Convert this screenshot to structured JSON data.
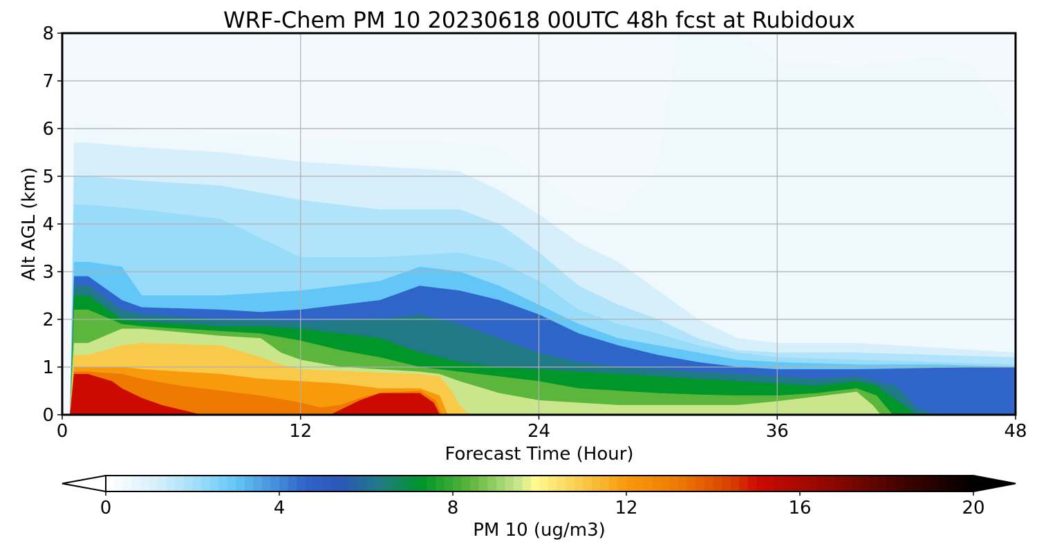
{
  "chart_data": {
    "type": "heatmap",
    "title": "WRF-Chem PM 10  20230618 00UTC 48h fcst at Rubidoux",
    "xlabel": "Forecast Time (Hour)",
    "ylabel": "Alt AGL (km)",
    "xlim": [
      0,
      48
    ],
    "ylim": [
      0,
      8
    ],
    "xticks": [
      0,
      12,
      24,
      36,
      48
    ],
    "yticks": [
      0,
      1,
      2,
      3,
      4,
      5,
      6,
      7,
      8
    ],
    "grid": true,
    "colorbar": {
      "label": "PM 10  (ug/m3)",
      "range": [
        0,
        20
      ],
      "ticks": [
        0,
        4,
        8,
        12,
        16,
        20
      ],
      "extend": "both",
      "orientation": "horizontal",
      "colors": [
        {
          "value": 0,
          "color": "#ffffff"
        },
        {
          "value": 1.2,
          "color": "#d6effb"
        },
        {
          "value": 2.2,
          "color": "#98dcfa"
        },
        {
          "value": 3,
          "color": "#63c6f7"
        },
        {
          "value": 4.6,
          "color": "#2f64c8"
        },
        {
          "value": 5.4,
          "color": "#2b56b8"
        },
        {
          "value": 6.3,
          "color": "#1f7a86"
        },
        {
          "value": 7.3,
          "color": "#00962a"
        },
        {
          "value": 8.4,
          "color": "#5cb63c"
        },
        {
          "value": 9.5,
          "color": "#c9e68c"
        },
        {
          "value": 9.9,
          "color": "#fffa90"
        },
        {
          "value": 11,
          "color": "#f9c94a"
        },
        {
          "value": 12,
          "color": "#f79a0c"
        },
        {
          "value": 13.2,
          "color": "#ef7a02"
        },
        {
          "value": 14.5,
          "color": "#d73a00"
        },
        {
          "value": 15,
          "color": "#cd0a00"
        },
        {
          "value": 16.8,
          "color": "#8a0800"
        },
        {
          "value": 18.5,
          "color": "#3a0300"
        },
        {
          "value": 20,
          "color": "#000000"
        }
      ]
    },
    "hours": [
      0,
      0.6,
      1,
      1.5,
      3,
      4,
      6,
      8,
      10,
      11,
      12,
      14,
      16,
      18,
      19,
      20,
      22,
      24,
      26,
      28,
      30,
      32,
      34,
      36,
      38,
      39,
      40,
      41,
      42,
      44,
      46,
      48
    ],
    "altitudes_km": [
      0,
      0.15,
      0.3,
      0.5,
      0.75,
      1,
      1.25,
      1.5,
      1.75,
      2,
      2.25,
      2.5,
      3,
      3.5,
      4,
      4.5,
      5,
      6,
      7,
      8
    ],
    "contour_levels": [
      {
        "threshold": 0.5,
        "boundary": [
          [
            1.3,
            6.1
          ],
          [
            4,
            6
          ],
          [
            8,
            5.9
          ],
          [
            12,
            5.8
          ],
          [
            16,
            5.75
          ],
          [
            20,
            5.7
          ],
          [
            22,
            5.6
          ],
          [
            24,
            5.0
          ],
          [
            26,
            4.4
          ],
          [
            28,
            4.2
          ],
          [
            30,
            5.2
          ],
          [
            31,
            8.0
          ],
          [
            34,
            8.0
          ],
          [
            36,
            7.4
          ],
          [
            40,
            7.3
          ],
          [
            44,
            7.5
          ],
          [
            46,
            7.3
          ],
          [
            47,
            6.5
          ],
          [
            48,
            6.0
          ]
        ]
      },
      {
        "threshold": 1.2,
        "boundary": [
          [
            1.3,
            5.7
          ],
          [
            4,
            5.6
          ],
          [
            8,
            5.5
          ],
          [
            12,
            5.3
          ],
          [
            16,
            5.2
          ],
          [
            20,
            5.1
          ],
          [
            22,
            4.7
          ],
          [
            24,
            4.2
          ],
          [
            26,
            3.6
          ],
          [
            28,
            3.2
          ],
          [
            30,
            2.6
          ],
          [
            32,
            2.0
          ],
          [
            34,
            1.6
          ],
          [
            36,
            1.5
          ],
          [
            40,
            1.5
          ],
          [
            44,
            1.4
          ],
          [
            48,
            1.3
          ]
        ]
      },
      {
        "threshold": 1.8,
        "boundary": [
          [
            1.3,
            5.0
          ],
          [
            4,
            4.9
          ],
          [
            8,
            4.8
          ],
          [
            12,
            4.5
          ],
          [
            16,
            4.3
          ],
          [
            20,
            4.3
          ],
          [
            22,
            4.0
          ],
          [
            24,
            3.4
          ],
          [
            26,
            2.7
          ],
          [
            28,
            2.3
          ],
          [
            30,
            2.0
          ],
          [
            32,
            1.6
          ],
          [
            34,
            1.35
          ],
          [
            36,
            1.3
          ],
          [
            40,
            1.3
          ],
          [
            44,
            1.25
          ],
          [
            48,
            1.2
          ]
        ]
      },
      {
        "threshold": 2.2,
        "boundary": [
          [
            1.3,
            4.4
          ],
          [
            4,
            4.3
          ],
          [
            8,
            4.1
          ],
          [
            10,
            3.7
          ],
          [
            12,
            3.3
          ],
          [
            16,
            3.3
          ],
          [
            20,
            3.4
          ],
          [
            22,
            3.2
          ],
          [
            24,
            2.8
          ],
          [
            26,
            2.2
          ],
          [
            28,
            1.9
          ],
          [
            30,
            1.7
          ],
          [
            32,
            1.45
          ],
          [
            34,
            1.3
          ],
          [
            36,
            1.2
          ],
          [
            40,
            1.15
          ],
          [
            44,
            1.1
          ],
          [
            48,
            1.05
          ]
        ]
      },
      {
        "threshold": 3.0,
        "boundary": [
          [
            1.3,
            3.2
          ],
          [
            3,
            3.1
          ],
          [
            4,
            2.5
          ],
          [
            8,
            2.5
          ],
          [
            12,
            2.6
          ],
          [
            16,
            2.8
          ],
          [
            18,
            3.1
          ],
          [
            20,
            3.0
          ],
          [
            22,
            2.7
          ],
          [
            24,
            2.3
          ],
          [
            26,
            1.9
          ],
          [
            28,
            1.6
          ],
          [
            30,
            1.45
          ],
          [
            32,
            1.3
          ],
          [
            34,
            1.15
          ],
          [
            36,
            1.1
          ],
          [
            40,
            1.05
          ],
          [
            44,
            1.05
          ],
          [
            48,
            1.0
          ]
        ]
      },
      {
        "threshold": 4.6,
        "boundary": [
          [
            1.3,
            2.9
          ],
          [
            3,
            2.4
          ],
          [
            4,
            2.25
          ],
          [
            8,
            2.2
          ],
          [
            10,
            2.15
          ],
          [
            12,
            2.2
          ],
          [
            16,
            2.4
          ],
          [
            18,
            2.7
          ],
          [
            20,
            2.6
          ],
          [
            22,
            2.4
          ],
          [
            24,
            2.1
          ],
          [
            26,
            1.7
          ],
          [
            28,
            1.45
          ],
          [
            30,
            1.25
          ],
          [
            32,
            1.1
          ],
          [
            34,
            1.0
          ],
          [
            36,
            0.95
          ],
          [
            40,
            0.95
          ],
          [
            44,
            0.98
          ],
          [
            48,
            1.0
          ]
        ]
      },
      {
        "threshold": 6.3,
        "boundary": [
          [
            1.3,
            2.7
          ],
          [
            3,
            2.2
          ],
          [
            4,
            2.1
          ],
          [
            8,
            2.0
          ],
          [
            12,
            1.95
          ],
          [
            16,
            2.0
          ],
          [
            18,
            2.1
          ],
          [
            20,
            1.9
          ],
          [
            22,
            1.6
          ],
          [
            24,
            1.3
          ],
          [
            26,
            1.1
          ],
          [
            28,
            1.0
          ],
          [
            30,
            0.95
          ],
          [
            32,
            0.9
          ],
          [
            34,
            0.85
          ],
          [
            36,
            0.8
          ],
          [
            38,
            0.75
          ],
          [
            40,
            0.8
          ],
          [
            42,
            0.6
          ],
          [
            43,
            0.15
          ],
          [
            44,
            0.0
          ]
        ]
      },
      {
        "threshold": 7.3,
        "boundary": [
          [
            1.3,
            2.5
          ],
          [
            3,
            2.0
          ],
          [
            4,
            1.95
          ],
          [
            8,
            1.85
          ],
          [
            10,
            1.85
          ],
          [
            12,
            1.8
          ],
          [
            14,
            1.7
          ],
          [
            16,
            1.6
          ],
          [
            18,
            1.3
          ],
          [
            20,
            1.1
          ],
          [
            22,
            1.0
          ],
          [
            24,
            0.95
          ],
          [
            26,
            0.9
          ],
          [
            28,
            0.85
          ],
          [
            30,
            0.8
          ],
          [
            32,
            0.75
          ],
          [
            34,
            0.7
          ],
          [
            36,
            0.65
          ],
          [
            38,
            0.6
          ],
          [
            40,
            0.7
          ],
          [
            41,
            0.6
          ],
          [
            42,
            0.3
          ],
          [
            43,
            0.0
          ]
        ]
      },
      {
        "threshold": 8.4,
        "boundary": [
          [
            1.3,
            2.2
          ],
          [
            3,
            1.9
          ],
          [
            4,
            1.85
          ],
          [
            8,
            1.75
          ],
          [
            10,
            1.7
          ],
          [
            12,
            1.55
          ],
          [
            14,
            1.35
          ],
          [
            16,
            1.2
          ],
          [
            18,
            1.0
          ],
          [
            20,
            0.9
          ],
          [
            22,
            0.8
          ],
          [
            24,
            0.7
          ],
          [
            26,
            0.55
          ],
          [
            28,
            0.5
          ],
          [
            30,
            0.45
          ],
          [
            32,
            0.42
          ],
          [
            34,
            0.4
          ],
          [
            36,
            0.4
          ],
          [
            38,
            0.45
          ],
          [
            40,
            0.55
          ],
          [
            41,
            0.4
          ],
          [
            41.8,
            0.0
          ]
        ]
      },
      {
        "threshold": 9.5,
        "boundary": [
          [
            1.3,
            1.5
          ],
          [
            3,
            1.8
          ],
          [
            4,
            1.8
          ],
          [
            8,
            1.65
          ],
          [
            10,
            1.6
          ],
          [
            11,
            1.3
          ],
          [
            12,
            1.15
          ],
          [
            14,
            1.0
          ],
          [
            16,
            0.95
          ],
          [
            18,
            0.9
          ],
          [
            19,
            0.85
          ],
          [
            20,
            0.7
          ],
          [
            22,
            0.45
          ],
          [
            24,
            0.3
          ],
          [
            26,
            0.25
          ],
          [
            28,
            0.2
          ],
          [
            32,
            0.2
          ],
          [
            34,
            0.2
          ],
          [
            36,
            0.28
          ],
          [
            38,
            0.38
          ],
          [
            40,
            0.48
          ],
          [
            40.8,
            0.2
          ],
          [
            41.2,
            0.0
          ]
        ]
      },
      {
        "threshold": 11,
        "boundary": [
          [
            1.3,
            1.25
          ],
          [
            3,
            1.45
          ],
          [
            4,
            1.5
          ],
          [
            8,
            1.45
          ],
          [
            10,
            1.2
          ],
          [
            11,
            1.05
          ],
          [
            12,
            0.95
          ],
          [
            14,
            0.92
          ],
          [
            16,
            0.88
          ],
          [
            18,
            0.85
          ],
          [
            19,
            0.8
          ],
          [
            19.6,
            0.5
          ],
          [
            20,
            0.2
          ],
          [
            20.5,
            0.0
          ]
        ]
      },
      {
        "threshold": 12,
        "boundary": [
          [
            1.3,
            1.0
          ],
          [
            3,
            1.0
          ],
          [
            4,
            0.95
          ],
          [
            8,
            0.85
          ],
          [
            10,
            0.75
          ],
          [
            12,
            0.7
          ],
          [
            14,
            0.65
          ],
          [
            16,
            0.55
          ],
          [
            18,
            0.55
          ],
          [
            19,
            0.4
          ],
          [
            19.4,
            0.0
          ]
        ]
      },
      {
        "threshold": 13.2,
        "boundary": [
          [
            1.3,
            0.9
          ],
          [
            3,
            0.85
          ],
          [
            4,
            0.75
          ],
          [
            6,
            0.6
          ],
          [
            8,
            0.5
          ],
          [
            10,
            0.4
          ],
          [
            12,
            0.25
          ],
          [
            13,
            0.15
          ],
          [
            14,
            0.2
          ],
          [
            15,
            0.35
          ],
          [
            16,
            0.45
          ],
          [
            18,
            0.5
          ],
          [
            18.8,
            0.3
          ],
          [
            19.1,
            0.0
          ]
        ]
      },
      {
        "threshold": 15,
        "boundary": [
          [
            1.3,
            0.85
          ],
          [
            2.5,
            0.7
          ],
          [
            3,
            0.55
          ],
          [
            4,
            0.35
          ],
          [
            5,
            0.2
          ],
          [
            6,
            0.1
          ],
          [
            7,
            0.0
          ],
          [
            13.5,
            0.0
          ],
          [
            14,
            0.1
          ],
          [
            15,
            0.3
          ],
          [
            16,
            0.45
          ],
          [
            18,
            0.45
          ],
          [
            18.7,
            0.25
          ],
          [
            19.0,
            0.0
          ]
        ]
      }
    ]
  }
}
